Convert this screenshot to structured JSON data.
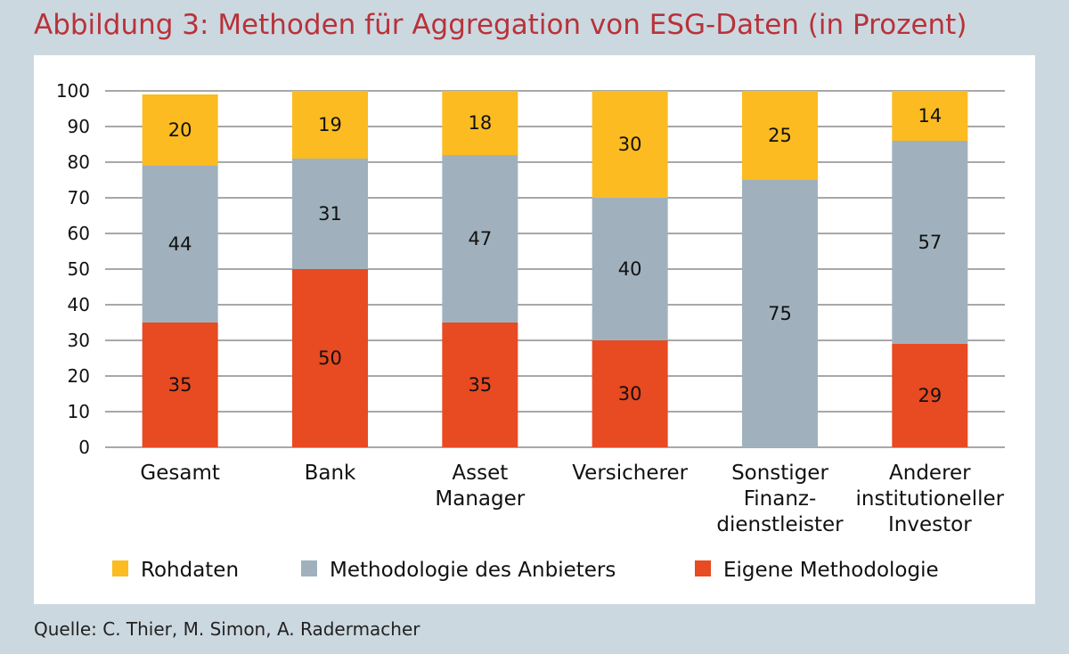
{
  "title": "Abbildung 3: Methoden für Aggregation von ESG-Daten (in Prozent)",
  "source": "Quelle: C. Thier, M. Simon, A. Radermacher",
  "chart_data": {
    "type": "bar",
    "stacked": true,
    "categories": [
      [
        "Gesamt"
      ],
      [
        "Bank"
      ],
      [
        "Asset",
        "Manager"
      ],
      [
        "Versicherer"
      ],
      [
        "Sonstiger",
        "Finanz-",
        "dienstleister"
      ],
      [
        "Anderer",
        "institutioneller",
        "Investor"
      ]
    ],
    "series": [
      {
        "name": "Eigene Methodologie",
        "color": "#e84a22",
        "values": [
          35,
          50,
          35,
          30,
          0,
          29
        ]
      },
      {
        "name": "Methodologie des Anbieters",
        "color": "#a0b1bd",
        "values": [
          44,
          31,
          47,
          40,
          75,
          57
        ]
      },
      {
        "name": "Rohdaten",
        "color": "#fbbb21",
        "values": [
          20,
          19,
          18,
          30,
          25,
          14
        ]
      }
    ],
    "legend_order": [
      "Rohdaten",
      "Methodologie des Anbieters",
      "Eigene Methodologie"
    ],
    "ylim": [
      0,
      100
    ],
    "yticks": [
      0,
      10,
      20,
      30,
      40,
      50,
      60,
      70,
      80,
      90,
      100
    ],
    "grid": true,
    "legend_position": "bottom"
  }
}
